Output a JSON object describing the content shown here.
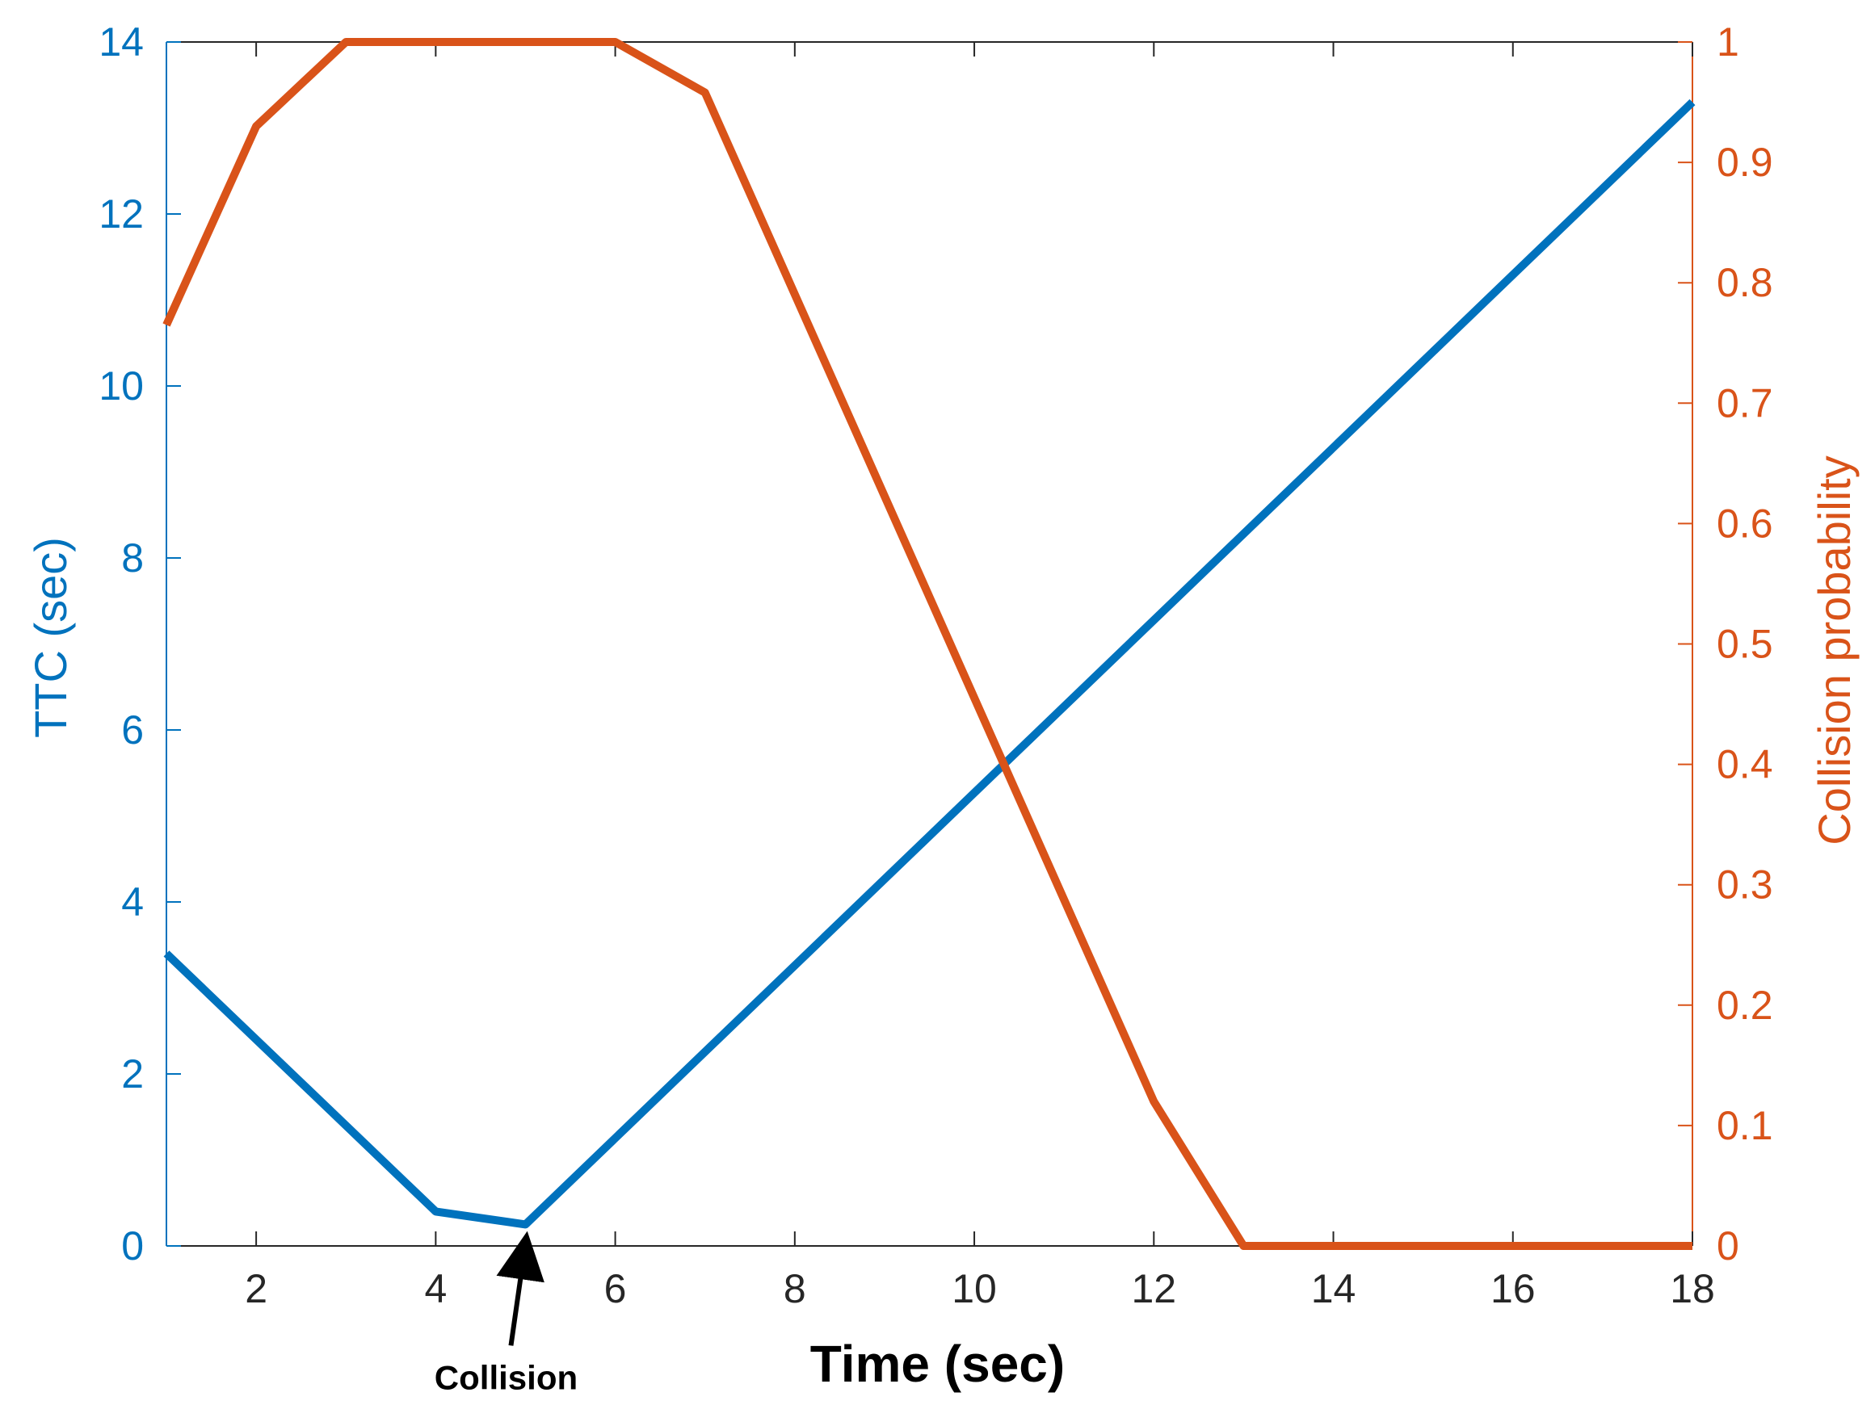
{
  "chart_data": {
    "type": "line",
    "title": "",
    "xlabel": "Time (sec)",
    "ylabel_left": "TTC (sec)",
    "ylabel_right": "Collision probability",
    "xlim": [
      1,
      18
    ],
    "ylim_left": [
      0,
      14
    ],
    "ylim_right": [
      0,
      1
    ],
    "x_ticks": [
      2,
      4,
      6,
      8,
      10,
      12,
      14,
      16,
      18
    ],
    "x_tick_labels": [
      "2",
      "4",
      "6",
      "8",
      "10",
      "12",
      "14",
      "16",
      "18"
    ],
    "y_left_ticks": [
      0,
      2,
      4,
      6,
      8,
      10,
      12,
      14
    ],
    "y_left_tick_labels": [
      "0",
      "2",
      "4",
      "6",
      "8",
      "10",
      "12",
      "14"
    ],
    "y_right_ticks": [
      0,
      0.1,
      0.2,
      0.3,
      0.4,
      0.5,
      0.6,
      0.7,
      0.8,
      0.9,
      1
    ],
    "y_right_tick_labels": [
      "0",
      "0.1",
      "0.2",
      "0.3",
      "0.4",
      "0.5",
      "0.6",
      "0.7",
      "0.8",
      "0.9",
      "1"
    ],
    "grid": false,
    "series": [
      {
        "axis": "left",
        "color": "#0072BD",
        "x": [
          1,
          4,
          5,
          18
        ],
        "y": [
          3.4,
          0.4,
          0.25,
          13.3
        ]
      },
      {
        "axis": "right",
        "color": "#D95319",
        "x": [
          1,
          2,
          3,
          6,
          7,
          12,
          13,
          18
        ],
        "y": [
          0.765,
          0.93,
          1.0,
          1.0,
          0.958,
          0.12,
          0.0,
          0.0
        ]
      }
    ],
    "annotations": [
      {
        "text": "Collision",
        "x": 5,
        "y_left": 0.25
      }
    ]
  },
  "colors": {
    "left_axis": "#0072BD",
    "right_axis": "#D95319",
    "axis": "#262626"
  }
}
